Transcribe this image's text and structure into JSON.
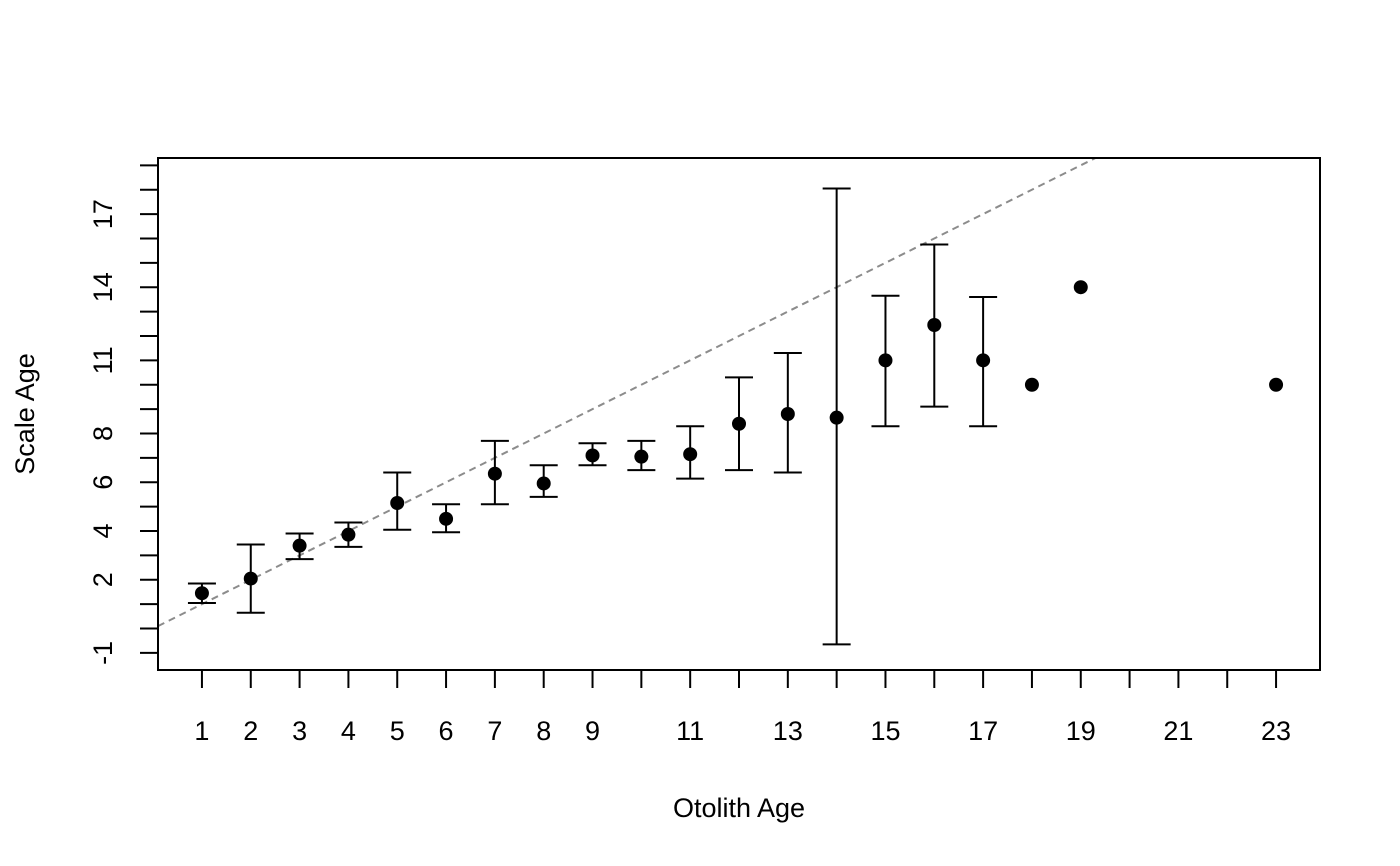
{
  "chart_data": {
    "type": "scatter",
    "xlabel": "Otolith Age",
    "ylabel": "Scale Age",
    "xlim": [
      0.1,
      23.9
    ],
    "ylim": [
      -1.7,
      19.3
    ],
    "x_ticks": [
      1,
      2,
      3,
      4,
      5,
      6,
      7,
      8,
      9,
      10,
      11,
      12,
      13,
      14,
      15,
      16,
      17,
      18,
      19,
      20,
      21,
      22,
      23
    ],
    "x_tick_labels": [
      {
        "value": 1,
        "label": "1"
      },
      {
        "value": 2,
        "label": "2"
      },
      {
        "value": 3,
        "label": "3"
      },
      {
        "value": 4,
        "label": "4"
      },
      {
        "value": 5,
        "label": "5"
      },
      {
        "value": 6,
        "label": "6"
      },
      {
        "value": 7,
        "label": "7"
      },
      {
        "value": 8,
        "label": "8"
      },
      {
        "value": 9,
        "label": "9"
      },
      {
        "value": 11,
        "label": "11"
      },
      {
        "value": 13,
        "label": "13"
      },
      {
        "value": 15,
        "label": "15"
      },
      {
        "value": 17,
        "label": "17"
      },
      {
        "value": 19,
        "label": "19"
      },
      {
        "value": 21,
        "label": "21"
      },
      {
        "value": 23,
        "label": "23"
      }
    ],
    "y_ticks": [
      -1,
      0,
      1,
      2,
      3,
      4,
      5,
      6,
      7,
      8,
      9,
      10,
      11,
      12,
      13,
      14,
      15,
      16,
      17,
      18,
      19
    ],
    "y_tick_labels": [
      {
        "value": -1,
        "label": "-1"
      },
      {
        "value": 2,
        "label": "2"
      },
      {
        "value": 4,
        "label": "4"
      },
      {
        "value": 6,
        "label": "6"
      },
      {
        "value": 8,
        "label": "8"
      },
      {
        "value": 11,
        "label": "11"
      },
      {
        "value": 14,
        "label": "14"
      },
      {
        "value": 17,
        "label": "17"
      }
    ],
    "points": [
      {
        "x": 1,
        "y": 1.45,
        "lo": 1.05,
        "hi": 1.85
      },
      {
        "x": 2,
        "y": 2.05,
        "lo": 0.65,
        "hi": 3.45
      },
      {
        "x": 3,
        "y": 3.4,
        "lo": 2.85,
        "hi": 3.9
      },
      {
        "x": 4,
        "y": 3.85,
        "lo": 3.35,
        "hi": 4.35
      },
      {
        "x": 5,
        "y": 5.15,
        "lo": 4.05,
        "hi": 6.4
      },
      {
        "x": 6,
        "y": 4.5,
        "lo": 3.95,
        "hi": 5.1
      },
      {
        "x": 7,
        "y": 6.35,
        "lo": 5.1,
        "hi": 7.7
      },
      {
        "x": 8,
        "y": 5.95,
        "lo": 5.4,
        "hi": 6.7
      },
      {
        "x": 9,
        "y": 7.1,
        "lo": 6.7,
        "hi": 7.6
      },
      {
        "x": 10,
        "y": 7.05,
        "lo": 6.5,
        "hi": 7.7
      },
      {
        "x": 11,
        "y": 7.15,
        "lo": 6.15,
        "hi": 8.3
      },
      {
        "x": 12,
        "y": 8.4,
        "lo": 6.5,
        "hi": 10.3
      },
      {
        "x": 13,
        "y": 8.8,
        "lo": 6.4,
        "hi": 11.3
      },
      {
        "x": 14,
        "y": 8.65,
        "lo": -0.65,
        "hi": 18.05
      },
      {
        "x": 15,
        "y": 11.0,
        "lo": 8.3,
        "hi": 13.65
      },
      {
        "x": 16,
        "y": 12.45,
        "lo": 9.1,
        "hi": 15.75
      },
      {
        "x": 17,
        "y": 11.0,
        "lo": 8.3,
        "hi": 13.6
      },
      {
        "x": 18,
        "y": 10.0
      },
      {
        "x": 19,
        "y": 14.0
      },
      {
        "x": 23,
        "y": 10.0
      }
    ],
    "reference_line": {
      "style": "dashed",
      "slope": 1,
      "intercept": 0,
      "color": "#8c8c8c"
    },
    "colors": {
      "points": "#000000",
      "error_bars": "#000000",
      "reference_line": "#8c8c8c"
    },
    "grid": false,
    "legend": "none"
  }
}
